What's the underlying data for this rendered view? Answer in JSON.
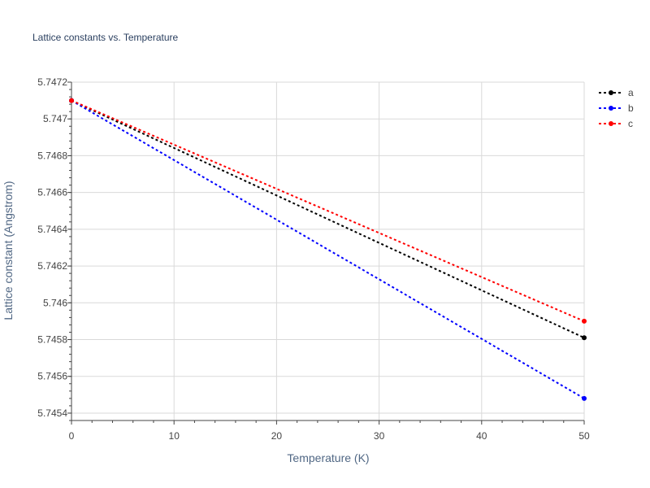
{
  "chart_data": {
    "type": "line",
    "title": "Lattice constants vs. Temperature",
    "xlabel": "Temperature (K)",
    "ylabel": "Lattice constant (Angstrom)",
    "xlim": [
      0,
      50
    ],
    "ylim": [
      5.74536,
      5.7472
    ],
    "x_ticks": [
      0,
      10,
      20,
      30,
      40,
      50
    ],
    "y_ticks": [
      5.7454,
      5.7456,
      5.7458,
      5.746,
      5.7462,
      5.7464,
      5.7466,
      5.7468,
      5.747,
      5.7472
    ],
    "y_tick_labels": [
      "5.7454",
      "5.7456",
      "5.7458",
      "5.746",
      "5.7462",
      "5.7464",
      "5.7466",
      "5.7468",
      "5.747",
      "5.7472"
    ],
    "grid": true,
    "legend_position": "top-right",
    "series": [
      {
        "name": "a",
        "color": "#000000",
        "x": [
          0,
          50
        ],
        "y": [
          5.7471,
          5.74581
        ]
      },
      {
        "name": "b",
        "color": "#0000ff",
        "x": [
          0,
          50
        ],
        "y": [
          5.7471,
          5.74548
        ]
      },
      {
        "name": "c",
        "color": "#ff0000",
        "x": [
          0,
          50
        ],
        "y": [
          5.7471,
          5.7459
        ]
      }
    ]
  }
}
